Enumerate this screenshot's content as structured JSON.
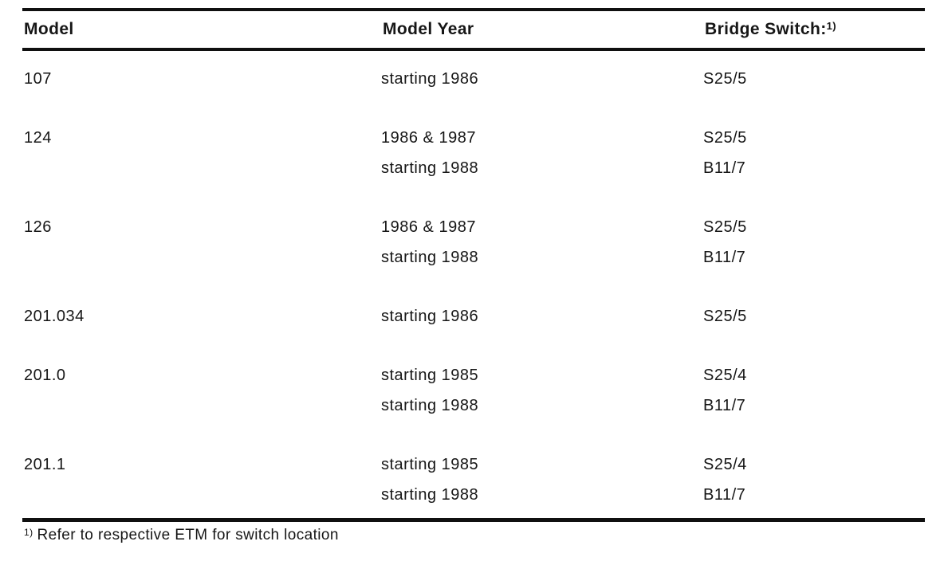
{
  "document": {
    "background": "#ffffff",
    "text_color": "#161616",
    "rule_color": "#101010"
  },
  "table": {
    "columns": [
      {
        "label": "Model"
      },
      {
        "label": "Model Year"
      },
      {
        "label": "Bridge Switch:",
        "superscript": "1)"
      }
    ],
    "groups": [
      {
        "model": "107",
        "entries": [
          {
            "year": "starting 1986",
            "switch": "S25/5"
          }
        ]
      },
      {
        "model": "124",
        "entries": [
          {
            "year": "1986 & 1987",
            "switch": "S25/5"
          },
          {
            "year": "starting 1988",
            "switch": "B11/7"
          }
        ]
      },
      {
        "model": "126",
        "entries": [
          {
            "year": "1986 & 1987",
            "switch": "S25/5"
          },
          {
            "year": "starting 1988",
            "switch": "B11/7"
          }
        ]
      },
      {
        "model": "201.034",
        "entries": [
          {
            "year": "starting 1986",
            "switch": "S25/5"
          }
        ]
      },
      {
        "model": "201.0",
        "entries": [
          {
            "year": "starting 1985",
            "switch": "S25/4"
          },
          {
            "year": "starting 1988",
            "switch": "B11/7"
          }
        ]
      },
      {
        "model": "201.1",
        "entries": [
          {
            "year": "starting 1985",
            "switch": "S25/4"
          },
          {
            "year": "starting 1988",
            "switch": "B11/7"
          }
        ]
      }
    ],
    "footnote": {
      "marker": "1)",
      "text": "Refer to respective ETM for switch location"
    }
  }
}
